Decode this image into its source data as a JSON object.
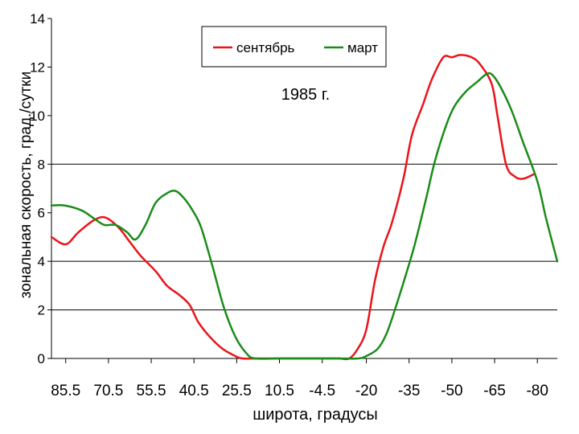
{
  "chart_data": {
    "type": "line",
    "annotation": "1985 г.",
    "xlabel": "широта, градусы",
    "ylabel": "зональная скорость, град./сутки",
    "ylim": [
      0,
      14
    ],
    "xlim": [
      90.5,
      -87
    ],
    "y_ticks": [
      0,
      2,
      4,
      6,
      8,
      10,
      12,
      14
    ],
    "x_tick_labels": [
      {
        "value": 85.5,
        "label": "85.5"
      },
      {
        "value": 70.5,
        "label": "70.5"
      },
      {
        "value": 55.5,
        "label": "55.5"
      },
      {
        "value": 40.5,
        "label": "40.5"
      },
      {
        "value": 25.5,
        "label": "25.5"
      },
      {
        "value": 10.5,
        "label": "10.5"
      },
      {
        "value": -4.5,
        "label": "-4.5"
      },
      {
        "value": -20,
        "label": "-20"
      },
      {
        "value": -35,
        "label": "-35"
      },
      {
        "value": -50,
        "label": "-50"
      },
      {
        "value": -65,
        "label": "-65"
      },
      {
        "value": -80,
        "label": "-80"
      }
    ],
    "gridlines_y": [
      2,
      4,
      8
    ],
    "legend_position": "top-center",
    "series": [
      {
        "name": "сентябрь",
        "color": "#e8151b",
        "points": [
          [
            90.5,
            5.0
          ],
          [
            85.5,
            4.7
          ],
          [
            81,
            5.2
          ],
          [
            75.5,
            5.7
          ],
          [
            71.5,
            5.8
          ],
          [
            67,
            5.4
          ],
          [
            63,
            4.8
          ],
          [
            59,
            4.2
          ],
          [
            54,
            3.6
          ],
          [
            50,
            3.0
          ],
          [
            45.5,
            2.6
          ],
          [
            42,
            2.2
          ],
          [
            39,
            1.5
          ],
          [
            35,
            0.9
          ],
          [
            30.5,
            0.4
          ],
          [
            26,
            0.1
          ],
          [
            23.5,
            0.0
          ],
          [
            18,
            0.0
          ],
          [
            10.5,
            0.0
          ],
          [
            0,
            0.0
          ],
          [
            -10,
            0.0
          ],
          [
            -14,
            0.0
          ],
          [
            -17,
            0.4
          ],
          [
            -20,
            1.2
          ],
          [
            -23,
            3.2
          ],
          [
            -26,
            4.6
          ],
          [
            -29,
            5.6
          ],
          [
            -33,
            7.4
          ],
          [
            -36,
            9.2
          ],
          [
            -40,
            10.5
          ],
          [
            -43,
            11.5
          ],
          [
            -47,
            12.4
          ],
          [
            -50,
            12.4
          ],
          [
            -53,
            12.5
          ],
          [
            -57,
            12.4
          ],
          [
            -60,
            12.1
          ],
          [
            -64,
            11.3
          ],
          [
            -66,
            10.0
          ],
          [
            -69,
            8.0
          ],
          [
            -72,
            7.5
          ],
          [
            -75,
            7.4
          ],
          [
            -79,
            7.6
          ]
        ]
      },
      {
        "name": "март",
        "color": "#1a8c1a",
        "points": [
          [
            90.5,
            6.3
          ],
          [
            86,
            6.3
          ],
          [
            80,
            6.1
          ],
          [
            76,
            5.8
          ],
          [
            72,
            5.5
          ],
          [
            68,
            5.5
          ],
          [
            64,
            5.2
          ],
          [
            61,
            4.9
          ],
          [
            57.5,
            5.5
          ],
          [
            54,
            6.4
          ],
          [
            50,
            6.8
          ],
          [
            47,
            6.9
          ],
          [
            44,
            6.6
          ],
          [
            41,
            6.1
          ],
          [
            38,
            5.4
          ],
          [
            34,
            3.8
          ],
          [
            30,
            2.1
          ],
          [
            26,
            0.9
          ],
          [
            22,
            0.2
          ],
          [
            19,
            0.0
          ],
          [
            10.5,
            0.0
          ],
          [
            0,
            0.0
          ],
          [
            -10,
            0.0
          ],
          [
            -17,
            0.0
          ],
          [
            -20,
            0.1
          ],
          [
            -24,
            0.4
          ],
          [
            -27,
            1.0
          ],
          [
            -30,
            2.0
          ],
          [
            -34,
            3.5
          ],
          [
            -37,
            4.7
          ],
          [
            -41,
            6.6
          ],
          [
            -44,
            8.1
          ],
          [
            -48,
            9.6
          ],
          [
            -51,
            10.4
          ],
          [
            -55,
            11.0
          ],
          [
            -59,
            11.4
          ],
          [
            -62,
            11.7
          ],
          [
            -64,
            11.7
          ],
          [
            -67,
            11.2
          ],
          [
            -71,
            10.2
          ],
          [
            -75,
            8.9
          ],
          [
            -80,
            7.3
          ],
          [
            -83,
            5.8
          ],
          [
            -87,
            4.0
          ]
        ]
      }
    ]
  }
}
